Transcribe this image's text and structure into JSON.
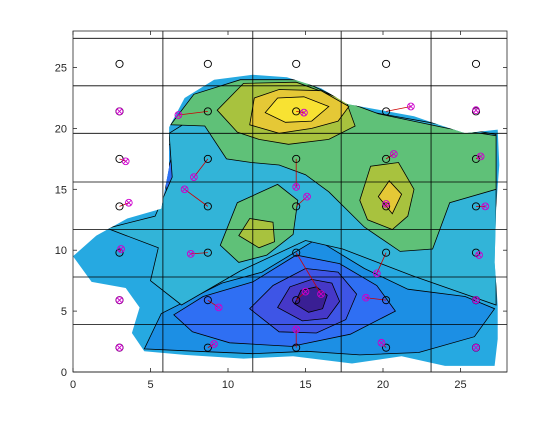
{
  "chart_data": {
    "type": "contour",
    "title": "",
    "xlabel": "",
    "ylabel": "",
    "xlim": [
      0,
      28
    ],
    "ylim": [
      0,
      28
    ],
    "x_ticks": [
      0,
      5,
      10,
      15,
      20,
      25
    ],
    "y_ticks": [
      0,
      5,
      10,
      15,
      20,
      25
    ],
    "box": true,
    "colormap": "parula",
    "colors": {
      "region_fill": "#26a9e1",
      "grid_line": "#000000",
      "contour_line": "#000000",
      "points": "#000000",
      "moved_points": "#cc00cc",
      "link_line": "#cc0000"
    },
    "grid_lines": {
      "x": [
        5.8,
        11.6,
        17.3,
        23.1
      ],
      "y": [
        0,
        3.9,
        7.8,
        11.7,
        15.6,
        19.6,
        23.5,
        27.4
      ]
    },
    "region_outline": [
      [
        0,
        9.5
      ],
      [
        1.5,
        11.2
      ],
      [
        3.5,
        12.6
      ],
      [
        5.7,
        13.4
      ],
      [
        6.2,
        16.8
      ],
      [
        6.2,
        20.1
      ],
      [
        7.2,
        22.5
      ],
      [
        9.1,
        24
      ],
      [
        11.6,
        24.4
      ],
      [
        13.8,
        24.2
      ],
      [
        16,
        23.3
      ],
      [
        17.7,
        22
      ],
      [
        19.9,
        21.5
      ],
      [
        22,
        21
      ],
      [
        23.6,
        20.3
      ],
      [
        25.3,
        19.6
      ],
      [
        27.4,
        19.9
      ],
      [
        27.5,
        17
      ],
      [
        27.3,
        13.5
      ],
      [
        27.2,
        9
      ],
      [
        27.4,
        5.5
      ],
      [
        27.4,
        2.7
      ],
      [
        27.2,
        0.5
      ],
      [
        24,
        0.5
      ],
      [
        21.2,
        1.3
      ],
      [
        18,
        0.7
      ],
      [
        14.2,
        1.3
      ],
      [
        11,
        1.1
      ],
      [
        7.2,
        1.4
      ],
      [
        4.6,
        1.7
      ],
      [
        3.8,
        3.2
      ],
      [
        4.3,
        5.3
      ],
      [
        3.4,
        6.9
      ],
      [
        1.2,
        7.4
      ]
    ],
    "contour_levels": [
      {
        "level": 1,
        "color": "#32b4d8",
        "polygons": [
          [
            [
              2.2,
              11.8
            ],
            [
              5.3,
              12.8
            ],
            [
              6.4,
              16
            ],
            [
              6.2,
              19.6
            ],
            [
              9.1,
              21.9
            ],
            [
              12.8,
              20.4
            ],
            [
              15.6,
              18.6
            ],
            [
              17.6,
              19.8
            ],
            [
              19.4,
              21.3
            ],
            [
              24.3,
              20.2
            ],
            [
              27.3,
              19.5
            ],
            [
              27.3,
              14.2
            ],
            [
              27.3,
              5.5
            ],
            [
              21.9,
              7.9
            ],
            [
              17.4,
              10.1
            ],
            [
              15,
              10.8
            ],
            [
              10.8,
              8.3
            ],
            [
              7,
              5.5
            ],
            [
              5,
              7.5
            ],
            [
              5.5,
              10.2
            ]
          ]
        ]
      },
      {
        "level": 2,
        "color": "#5fc178",
        "polygons": [
          [
            [
              6.3,
              20.3
            ],
            [
              7.8,
              22.8
            ],
            [
              10.8,
              24
            ],
            [
              14.6,
              24
            ],
            [
              17.8,
              22.1
            ],
            [
              19.7,
              21.2
            ],
            [
              24.2,
              20
            ],
            [
              27.3,
              19.4
            ],
            [
              27.3,
              15
            ],
            [
              24.3,
              13.9
            ],
            [
              23.2,
              10.1
            ],
            [
              21.1,
              9.9
            ],
            [
              18.8,
              11.9
            ],
            [
              16.5,
              14.8
            ],
            [
              15,
              16.2
            ],
            [
              13.3,
              17
            ],
            [
              11.5,
              17.2
            ],
            [
              9.9,
              17.5
            ],
            [
              8.5,
              20.2
            ]
          ],
          [
            [
              9.5,
              10.4
            ],
            [
              10.6,
              13.9
            ],
            [
              13.2,
              15.4
            ],
            [
              14.5,
              14.1
            ],
            [
              14.2,
              11.3
            ],
            [
              12.5,
              9.6
            ],
            [
              10.7,
              9
            ]
          ]
        ]
      },
      {
        "level": 3,
        "color": "#a8c23e",
        "polygons": [
          [
            [
              9.3,
              21.5
            ],
            [
              11,
              23.7
            ],
            [
              14.4,
              23.8
            ],
            [
              17.6,
              22.3
            ],
            [
              18.2,
              20.2
            ],
            [
              16.5,
              19.1
            ],
            [
              13.9,
              18.7
            ],
            [
              12,
              19.1
            ],
            [
              10.6,
              19.7
            ]
          ],
          [
            [
              18.5,
              14.1
            ],
            [
              19.2,
              16.9
            ],
            [
              21,
              17.2
            ],
            [
              22,
              15
            ],
            [
              21.6,
              12.8
            ],
            [
              20.6,
              11.7
            ],
            [
              19,
              12.5
            ]
          ],
          [
            [
              10.7,
              11.2
            ],
            [
              11.4,
              12.6
            ],
            [
              12.9,
              12.3
            ],
            [
              13,
              10.7
            ],
            [
              12,
              10.2
            ]
          ]
        ]
      },
      {
        "level": 4,
        "color": "#e5c836",
        "polygons": [
          [
            [
              11.4,
              20.3
            ],
            [
              11.7,
              22.5
            ],
            [
              13.3,
              23.2
            ],
            [
              16,
              23.1
            ],
            [
              17.8,
              21.8
            ],
            [
              17.1,
              20.6
            ],
            [
              15.4,
              20
            ],
            [
              13.3,
              19.6
            ]
          ],
          [
            [
              19.7,
              14.4
            ],
            [
              20.4,
              15.7
            ],
            [
              21.2,
              14.6
            ],
            [
              20.6,
              13
            ]
          ]
        ]
      },
      {
        "level": 5,
        "color": "#f8e232",
        "polygons": [
          [
            [
              12.4,
              21.3
            ],
            [
              13.2,
              22.5
            ],
            [
              14.9,
              22.6
            ],
            [
              16.5,
              21.8
            ],
            [
              15.4,
              20.6
            ],
            [
              13.7,
              20.5
            ]
          ]
        ]
      }
    ],
    "low_levels": [
      {
        "level": -1,
        "color": "#1c8fe4",
        "polygons": [
          [
            [
              4.6,
              1.9
            ],
            [
              5.7,
              4.8
            ],
            [
              9.6,
              7.3
            ],
            [
              12.2,
              8.2
            ],
            [
              15.7,
              10.9
            ],
            [
              18.8,
              8.5
            ],
            [
              21.6,
              6.8
            ],
            [
              25.3,
              6.2
            ],
            [
              27.2,
              5.2
            ],
            [
              25.9,
              2.9
            ],
            [
              22.3,
              1.6
            ],
            [
              18.5,
              1.4
            ],
            [
              15.1,
              1.7
            ],
            [
              11.6,
              1.5
            ],
            [
              8,
              1.7
            ]
          ],
          [
            [
              5.1,
              15.3
            ],
            [
              6.2,
              18.7
            ],
            [
              8.9,
              18.9
            ],
            [
              10.4,
              16.7
            ],
            [
              9.6,
              13.5
            ],
            [
              7.9,
              12.4
            ],
            [
              6.1,
              12.9
            ]
          ]
        ]
      },
      {
        "level": -2,
        "color": "#2f6ff3",
        "polygons": [
          [
            [
              6.5,
              4.7
            ],
            [
              8.4,
              6.2
            ],
            [
              11.6,
              7.4
            ],
            [
              14.4,
              9.6
            ],
            [
              17.2,
              8.9
            ],
            [
              19.6,
              7.1
            ],
            [
              20.8,
              5
            ],
            [
              17.9,
              3.1
            ],
            [
              14.1,
              2.1
            ],
            [
              10.1,
              2.4
            ],
            [
              7.7,
              3.3
            ]
          ],
          [
            [
              5.9,
              15.7
            ],
            [
              6.4,
              17.8
            ],
            [
              8.3,
              18.2
            ],
            [
              9.9,
              16.8
            ],
            [
              9.5,
              13.7
            ],
            [
              7.9,
              12.9
            ],
            [
              6.3,
              13.4
            ]
          ]
        ]
      },
      {
        "level": -3,
        "color": "#3e55e6",
        "polygons": [
          [
            [
              11.4,
              5.2
            ],
            [
              12.9,
              7.1
            ],
            [
              15,
              8.5
            ],
            [
              17.1,
              8.2
            ],
            [
              18.3,
              6.4
            ],
            [
              17.6,
              4.3
            ],
            [
              15.7,
              3.2
            ],
            [
              13.3,
              3.3
            ]
          ],
          [
            [
              14.6,
              15.8
            ],
            [
              15.1,
              16.2
            ],
            [
              15.2,
              15.4
            ],
            [
              14.9,
              15
            ]
          ]
        ]
      },
      {
        "level": -4,
        "color": "#4638c8",
        "polygons": [
          [
            [
              13.2,
              5.3
            ],
            [
              14,
              7
            ],
            [
              15.4,
              7.6
            ],
            [
              16.7,
              7.3
            ],
            [
              17.2,
              5.8
            ],
            [
              16.4,
              4.4
            ],
            [
              14.8,
              4.2
            ]
          ]
        ]
      },
      {
        "level": -5,
        "color": "#3a1f94",
        "polygons": [
          [
            [
              14.3,
              5.6
            ],
            [
              14.7,
              6.7
            ],
            [
              15.7,
              7
            ],
            [
              16.4,
              6.3
            ],
            [
              16.1,
              5.2
            ],
            [
              15.2,
              4.9
            ]
          ]
        ]
      }
    ],
    "original_points": [
      [
        3,
        2
      ],
      [
        8.7,
        2
      ],
      [
        14.4,
        2
      ],
      [
        20.2,
        2
      ],
      [
        26,
        2
      ],
      [
        3,
        5.9
      ],
      [
        8.7,
        5.9
      ],
      [
        14.4,
        5.9
      ],
      [
        20.2,
        5.9
      ],
      [
        26,
        5.9
      ],
      [
        3,
        9.8
      ],
      [
        8.7,
        9.8
      ],
      [
        14.4,
        9.8
      ],
      [
        20.2,
        9.8
      ],
      [
        26,
        9.8
      ],
      [
        3,
        13.6
      ],
      [
        8.7,
        13.6
      ],
      [
        14.4,
        13.6
      ],
      [
        20.2,
        13.6
      ],
      [
        26,
        13.6
      ],
      [
        3,
        17.5
      ],
      [
        8.7,
        17.5
      ],
      [
        14.4,
        17.5
      ],
      [
        20.2,
        17.5
      ],
      [
        26,
        17.5
      ],
      [
        3,
        21.4
      ],
      [
        8.7,
        21.4
      ],
      [
        14.4,
        21.4
      ],
      [
        20.2,
        21.4
      ],
      [
        26,
        21.4
      ],
      [
        3,
        25.3
      ],
      [
        8.7,
        25.3
      ],
      [
        14.4,
        25.3
      ],
      [
        20.2,
        25.3
      ],
      [
        26,
        25.3
      ]
    ],
    "moved_points": [
      {
        "from": [
          3,
          2
        ],
        "to": [
          3,
          2
        ]
      },
      {
        "from": [
          8.7,
          2
        ],
        "to": [
          9.1,
          2.3
        ]
      },
      {
        "from": [
          14.4,
          2
        ],
        "to": [
          14.4,
          3.5
        ]
      },
      {
        "from": [
          20.2,
          2
        ],
        "to": [
          19.9,
          2.4
        ]
      },
      {
        "from": [
          26,
          2
        ],
        "to": [
          26,
          2
        ]
      },
      {
        "from": [
          3,
          5.9
        ],
        "to": [
          3,
          5.9
        ]
      },
      {
        "from": [
          8.7,
          5.9
        ],
        "to": [
          9.4,
          5.3
        ]
      },
      {
        "from": [
          14.4,
          5.9
        ],
        "to": [
          15,
          6.6
        ]
      },
      {
        "from": [
          20.2,
          5.9
        ],
        "to": [
          18.9,
          6.1
        ]
      },
      {
        "from": [
          26,
          5.9
        ],
        "to": [
          26,
          5.9
        ]
      },
      {
        "from": [
          3,
          9.8
        ],
        "to": [
          3.1,
          10.1
        ]
      },
      {
        "from": [
          8.7,
          9.8
        ],
        "to": [
          7.6,
          9.7
        ]
      },
      {
        "from": [
          14.4,
          9.8
        ],
        "to": [
          16,
          6.4
        ]
      },
      {
        "from": [
          20.2,
          9.8
        ],
        "to": [
          19.6,
          8.1
        ]
      },
      {
        "from": [
          26,
          9.8
        ],
        "to": [
          26.2,
          9.6
        ]
      },
      {
        "from": [
          3,
          13.6
        ],
        "to": [
          3.6,
          13.9
        ]
      },
      {
        "from": [
          8.7,
          13.6
        ],
        "to": [
          7.2,
          15
        ]
      },
      {
        "from": [
          14.4,
          13.6
        ],
        "to": [
          15.1,
          14.4
        ]
      },
      {
        "from": [
          20.2,
          13.6
        ],
        "to": [
          20.2,
          13.8
        ]
      },
      {
        "from": [
          26,
          13.6
        ],
        "to": [
          26.6,
          13.6
        ]
      },
      {
        "from": [
          3,
          17.5
        ],
        "to": [
          3.4,
          17.3
        ]
      },
      {
        "from": [
          8.7,
          17.5
        ],
        "to": [
          7.8,
          16
        ]
      },
      {
        "from": [
          14.4,
          17.5
        ],
        "to": [
          14.4,
          15.2
        ]
      },
      {
        "from": [
          20.2,
          17.5
        ],
        "to": [
          20.7,
          17.9
        ]
      },
      {
        "from": [
          26,
          17.5
        ],
        "to": [
          26.3,
          17.7
        ]
      },
      {
        "from": [
          3,
          21.4
        ],
        "to": [
          3,
          21.4
        ]
      },
      {
        "from": [
          8.7,
          21.4
        ],
        "to": [
          6.8,
          21.1
        ]
      },
      {
        "from": [
          14.4,
          21.4
        ],
        "to": [
          14.9,
          21.3
        ]
      },
      {
        "from": [
          20.2,
          21.4
        ],
        "to": [
          21.8,
          21.8
        ]
      },
      {
        "from": [
          26,
          21.4
        ],
        "to": [
          26,
          21.5
        ]
      }
    ]
  }
}
